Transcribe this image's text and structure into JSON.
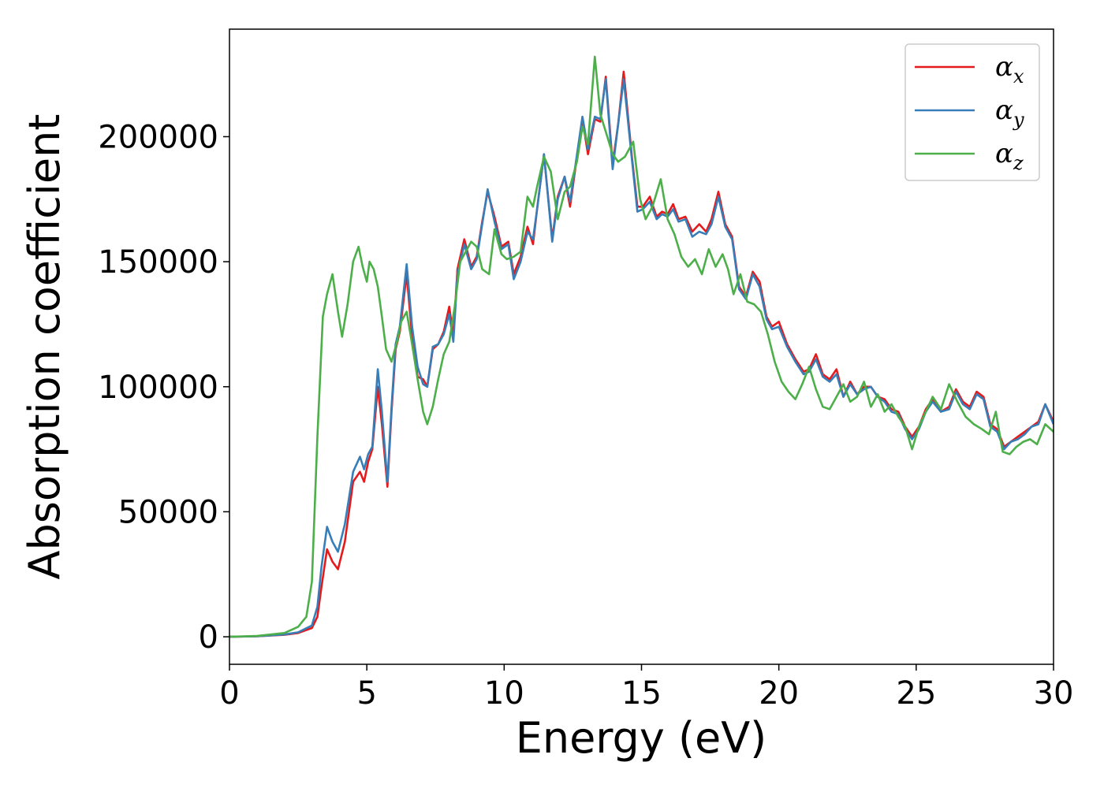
{
  "chart_data": {
    "type": "line",
    "title": "",
    "xlabel": "Energy (eV)",
    "ylabel": "Absorption coefficient",
    "xlim": [
      0,
      30
    ],
    "ylim": [
      -11000,
      243000
    ],
    "xticks": [
      0,
      5,
      10,
      15,
      20,
      25,
      30
    ],
    "yticks": [
      0,
      50000,
      100000,
      150000,
      200000
    ],
    "grid": false,
    "legend_position": "top-right",
    "series": [
      {
        "name": "α",
        "subscript": "x",
        "color": "#e41a1c",
        "x": [
          0,
          1,
          2,
          2.5,
          3,
          3.2,
          3.35,
          3.55,
          3.75,
          3.95,
          4.2,
          4.5,
          4.75,
          4.9,
          5.05,
          5.2,
          5.4,
          5.55,
          5.75,
          5.9,
          6.05,
          6.2,
          6.45,
          6.65,
          6.85,
          7.05,
          7.2,
          7.4,
          7.6,
          7.8,
          8.0,
          8.15,
          8.3,
          8.55,
          8.8,
          9.0,
          9.2,
          9.4,
          9.65,
          9.9,
          10.15,
          10.35,
          10.6,
          10.85,
          11.05,
          11.2,
          11.45,
          11.75,
          11.95,
          12.2,
          12.4,
          12.6,
          12.85,
          13.05,
          13.3,
          13.5,
          13.7,
          13.95,
          14.15,
          14.35,
          14.65,
          14.85,
          15.05,
          15.3,
          15.55,
          15.75,
          15.95,
          16.15,
          16.35,
          16.6,
          16.85,
          17.1,
          17.35,
          17.55,
          17.8,
          18.05,
          18.3,
          18.55,
          18.8,
          19.05,
          19.3,
          19.55,
          19.75,
          20.0,
          20.3,
          20.6,
          20.9,
          21.1,
          21.35,
          21.6,
          21.85,
          22.1,
          22.35,
          22.6,
          22.85,
          23.1,
          23.35,
          23.6,
          23.85,
          24.1,
          24.35,
          24.6,
          24.85,
          25.1,
          25.35,
          25.6,
          25.9,
          26.2,
          26.45,
          26.7,
          26.95,
          27.2,
          27.45,
          27.7,
          27.95,
          28.2,
          28.45,
          28.7,
          28.95,
          29.2,
          29.45,
          29.7,
          30.0
        ],
        "y": [
          0,
          200,
          800,
          1500,
          3500,
          8000,
          20000,
          35000,
          30000,
          27000,
          38000,
          62000,
          66000,
          62000,
          70000,
          75000,
          100000,
          85000,
          60000,
          90000,
          115000,
          122000,
          145000,
          120000,
          104000,
          103000,
          100000,
          115000,
          117000,
          122000,
          132000,
          120000,
          147000,
          159000,
          148000,
          152000,
          166000,
          178000,
          168000,
          156000,
          158000,
          145000,
          152000,
          164000,
          157000,
          171000,
          193000,
          159000,
          176000,
          184000,
          172000,
          188000,
          207000,
          193000,
          207000,
          206000,
          224000,
          189000,
          205000,
          226000,
          192000,
          172000,
          172000,
          176000,
          168000,
          170000,
          169000,
          173000,
          167000,
          168000,
          162000,
          165000,
          162000,
          167000,
          178000,
          165000,
          160000,
          140000,
          136000,
          146000,
          142000,
          128000,
          124000,
          126000,
          117000,
          111000,
          106000,
          107000,
          113000,
          105000,
          103000,
          107000,
          96000,
          102000,
          97000,
          100000,
          100000,
          96000,
          95000,
          91000,
          90000,
          84000,
          80000,
          84000,
          91000,
          95000,
          90000,
          92000,
          99000,
          94000,
          92000,
          98000,
          96000,
          85000,
          83000,
          76000,
          78000,
          80000,
          82000,
          84000,
          86000,
          93000,
          86000
        ]
      },
      {
        "name": "α",
        "subscript": "y",
        "color": "#377eb8",
        "x": [
          0,
          1,
          2,
          2.5,
          3,
          3.2,
          3.35,
          3.55,
          3.75,
          3.95,
          4.2,
          4.5,
          4.75,
          4.9,
          5.05,
          5.2,
          5.4,
          5.55,
          5.75,
          5.9,
          6.05,
          6.2,
          6.45,
          6.65,
          6.85,
          7.05,
          7.2,
          7.4,
          7.6,
          7.8,
          8.0,
          8.15,
          8.3,
          8.55,
          8.8,
          9.0,
          9.2,
          9.4,
          9.65,
          9.9,
          10.15,
          10.35,
          10.6,
          10.85,
          11.05,
          11.2,
          11.45,
          11.75,
          11.95,
          12.2,
          12.4,
          12.6,
          12.85,
          13.05,
          13.3,
          13.5,
          13.7,
          13.95,
          14.15,
          14.35,
          14.65,
          14.85,
          15.05,
          15.3,
          15.55,
          15.75,
          15.95,
          16.15,
          16.35,
          16.6,
          16.85,
          17.1,
          17.35,
          17.55,
          17.8,
          18.05,
          18.3,
          18.55,
          18.8,
          19.05,
          19.3,
          19.55,
          19.75,
          20.0,
          20.3,
          20.6,
          20.9,
          21.1,
          21.35,
          21.6,
          21.85,
          22.1,
          22.35,
          22.6,
          22.85,
          23.1,
          23.35,
          23.6,
          23.85,
          24.1,
          24.35,
          24.6,
          24.85,
          25.1,
          25.35,
          25.6,
          25.9,
          26.2,
          26.45,
          26.7,
          26.95,
          27.2,
          27.45,
          27.7,
          27.95,
          28.2,
          28.45,
          28.7,
          28.95,
          29.2,
          29.45,
          29.7,
          30.0
        ],
        "y": [
          0,
          200,
          900,
          1800,
          4500,
          12000,
          28000,
          44000,
          38000,
          34000,
          45000,
          66000,
          72000,
          67000,
          73000,
          76000,
          107000,
          90000,
          62000,
          92000,
          117000,
          124000,
          149000,
          124000,
          108000,
          101000,
          100000,
          116000,
          117000,
          121000,
          129000,
          118000,
          145000,
          157000,
          147000,
          151000,
          165000,
          179000,
          166000,
          155000,
          157000,
          143000,
          150000,
          162000,
          159000,
          171000,
          193000,
          158000,
          175000,
          184000,
          174000,
          189000,
          208000,
          195000,
          208000,
          207000,
          223000,
          187000,
          205000,
          223000,
          191000,
          170000,
          171000,
          174000,
          167000,
          169000,
          168000,
          171000,
          166000,
          167000,
          160000,
          162000,
          161000,
          165000,
          176000,
          164000,
          159000,
          139000,
          135000,
          145000,
          140000,
          127000,
          123000,
          124000,
          116000,
          110000,
          105000,
          106000,
          111000,
          104000,
          102000,
          105000,
          96000,
          101000,
          97000,
          99000,
          100000,
          96000,
          94000,
          90000,
          89000,
          83000,
          79000,
          83000,
          90000,
          94000,
          90000,
          91000,
          98000,
          93000,
          91000,
          97000,
          95000,
          84000,
          82000,
          75000,
          78000,
          79000,
          81000,
          84000,
          85000,
          93000,
          85000
        ]
      },
      {
        "name": "α",
        "subscript": "z",
        "color": "#4daf4a",
        "x": [
          0,
          1,
          2,
          2.5,
          2.8,
          3.0,
          3.2,
          3.4,
          3.55,
          3.75,
          3.95,
          4.1,
          4.3,
          4.5,
          4.7,
          4.85,
          5.0,
          5.1,
          5.25,
          5.4,
          5.55,
          5.7,
          5.9,
          6.1,
          6.25,
          6.45,
          6.65,
          6.85,
          7.05,
          7.2,
          7.4,
          7.6,
          7.8,
          8.0,
          8.2,
          8.4,
          8.6,
          8.8,
          9.0,
          9.2,
          9.45,
          9.65,
          9.9,
          10.1,
          10.35,
          10.6,
          10.85,
          11.05,
          11.2,
          11.45,
          11.7,
          11.95,
          12.2,
          12.4,
          12.65,
          12.85,
          13.05,
          13.3,
          13.5,
          13.7,
          13.95,
          14.15,
          14.4,
          14.7,
          14.95,
          15.15,
          15.4,
          15.7,
          15.95,
          16.2,
          16.45,
          16.7,
          16.95,
          17.2,
          17.45,
          17.7,
          17.95,
          18.15,
          18.35,
          18.6,
          18.85,
          19.1,
          19.35,
          19.6,
          19.85,
          20.1,
          20.35,
          20.6,
          20.85,
          21.1,
          21.35,
          21.6,
          21.85,
          22.1,
          22.35,
          22.6,
          22.85,
          23.1,
          23.35,
          23.6,
          23.85,
          24.1,
          24.35,
          24.6,
          24.85,
          25.1,
          25.35,
          25.6,
          25.9,
          26.2,
          26.5,
          26.8,
          27.1,
          27.4,
          27.65,
          27.9,
          28.15,
          28.4,
          28.65,
          28.9,
          29.15,
          29.4,
          29.7,
          30.0
        ],
        "y": [
          0,
          300,
          1500,
          4000,
          8000,
          22000,
          80000,
          128000,
          137000,
          145000,
          130000,
          120000,
          133000,
          150000,
          156000,
          148000,
          142000,
          150000,
          147000,
          140000,
          128000,
          115000,
          110000,
          118000,
          126000,
          130000,
          117000,
          103000,
          90000,
          85000,
          92000,
          103000,
          113000,
          118000,
          132000,
          150000,
          154000,
          158000,
          156000,
          147000,
          145000,
          163000,
          153000,
          151000,
          152000,
          154000,
          176000,
          172000,
          180000,
          192000,
          186000,
          167000,
          178000,
          180000,
          190000,
          204000,
          197000,
          232000,
          209000,
          202000,
          193000,
          190000,
          192000,
          198000,
          175000,
          167000,
          172000,
          183000,
          167000,
          161000,
          152000,
          148000,
          151000,
          145000,
          155000,
          148000,
          153000,
          147000,
          137000,
          145000,
          134000,
          133000,
          130000,
          121000,
          110000,
          102000,
          98000,
          95000,
          101000,
          108000,
          99000,
          92000,
          91000,
          96000,
          101000,
          94000,
          96000,
          102000,
          92000,
          97000,
          90000,
          93000,
          88000,
          84000,
          75000,
          84000,
          90000,
          96000,
          91000,
          101000,
          94000,
          88000,
          85000,
          83000,
          81000,
          90000,
          74000,
          73000,
          76000,
          78000,
          79000,
          77000,
          85000,
          82000
        ]
      }
    ]
  }
}
